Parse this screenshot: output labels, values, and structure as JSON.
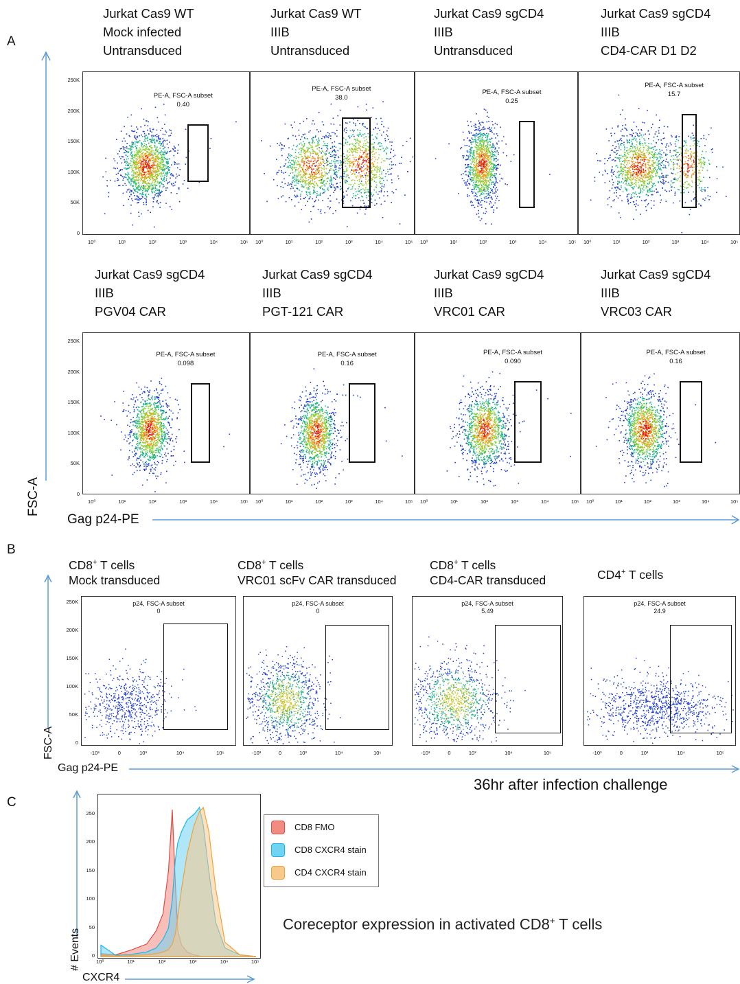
{
  "panels": {
    "a": "A",
    "b": "B",
    "c": "C"
  },
  "panelA": {
    "axis_x_label": "Gag p24-PE",
    "axis_y_label": "FSC-A",
    "y_ticks": [
      "250K",
      "200K",
      "150K",
      "100K",
      "50K",
      "0"
    ],
    "x_ticks": [
      "10⁰",
      "10¹",
      "10²",
      "10³",
      "10⁴",
      "10⁵"
    ],
    "plots": [
      {
        "lines": [
          "Jurkat Cas9 WT",
          "Mock infected",
          "Untransduced"
        ],
        "gate_name": "PE-A, FSC-A subset",
        "value": "0.40"
      },
      {
        "lines": [
          "Jurkat Cas9 WT",
          "IIIB",
          "Untransduced"
        ],
        "gate_name": "PE-A, FSC-A subset",
        "value": "38.0"
      },
      {
        "lines": [
          "Jurkat Cas9 sgCD4",
          "IIIB",
          "Untransduced"
        ],
        "gate_name": "PE-A, FSC-A subset",
        "value": "0.25"
      },
      {
        "lines": [
          "Jurkat Cas9 sgCD4",
          "IIIB",
          "CD4-CAR D1 D2"
        ],
        "gate_name": "PE-A, FSC-A subset",
        "value": "15.7"
      },
      {
        "lines": [
          "Jurkat Cas9 sgCD4",
          "IIIB",
          "PGV04 CAR"
        ],
        "gate_name": "PE-A, FSC-A subset",
        "value": "0.098"
      },
      {
        "lines": [
          "Jurkat Cas9 sgCD4",
          "IIIB",
          "PGT-121 CAR"
        ],
        "gate_name": "PE-A, FSC-A subset",
        "value": "0.16"
      },
      {
        "lines": [
          "Jurkat Cas9 sgCD4",
          "IIIB",
          "VRC01 CAR"
        ],
        "gate_name": "PE-A, FSC-A subset",
        "value": "0.090"
      },
      {
        "lines": [
          "Jurkat Cas9 sgCD4",
          "IIIB",
          "VRC03 CAR"
        ],
        "gate_name": "PE-A, FSC-A subset",
        "value": "0.16"
      }
    ]
  },
  "panelB": {
    "axis_x_label": "Gag p24-PE",
    "axis_y_label": "FSC-A",
    "footnote": "36hr after infection challenge",
    "y_ticks": [
      "250K",
      "200K",
      "150K",
      "100K",
      "50K",
      "0"
    ],
    "x_ticks": [
      "-10³",
      "0",
      "10³",
      "10⁴",
      "10⁵"
    ],
    "plots": [
      {
        "line1_main": "CD8",
        "line1_sup": "+",
        "line1_rest": " T cells",
        "line2": "Mock transduced",
        "gate_name": "p24, FSC-A subset",
        "value": "0"
      },
      {
        "line1_main": "CD8",
        "line1_sup": "+",
        "line1_rest": " T cells",
        "line2": "VRC01 scFv CAR transduced",
        "gate_name": "p24, FSC-A subset",
        "value": "0"
      },
      {
        "line1_main": "CD8",
        "line1_sup": "+",
        "line1_rest": " T cells",
        "line2": "CD4-CAR transduced",
        "gate_name": "p24, FSC-A subset",
        "value": "5.49"
      },
      {
        "line1_main": "CD4",
        "line1_sup": "+",
        "line1_rest": " T cells",
        "line2": "",
        "gate_name": "p24, FSC-A subset",
        "value": "24.9"
      }
    ]
  },
  "panelC": {
    "axis_x_label": "CXCR4",
    "axis_y_label": "# Events",
    "y_ticks": [
      "250",
      "200",
      "150",
      "100",
      "50",
      "0"
    ],
    "x_ticks": [
      "10⁰",
      "10¹",
      "10²",
      "10³",
      "10⁴",
      "10⁵"
    ],
    "legend": [
      {
        "label": "CD8 FMO",
        "color": "#f28b82"
      },
      {
        "label": "CD8 CXCR4 stain",
        "color": "#6fd3f2"
      },
      {
        "label": "CD4 CXCR4 stain",
        "color": "#f7c98b"
      }
    ],
    "caption_pre": "Coreceptor expression in activated CD8",
    "caption_sup": "+",
    "caption_post": " T cells"
  },
  "chart_data": [
    {
      "type": "scatter",
      "title": "",
      "xlabel": "Gag p24-PE",
      "ylabel": "FSC-A",
      "x_scale": "log",
      "xlim": [
        1,
        100000
      ],
      "ylim": [
        0,
        262144
      ],
      "series": [
        {
          "name": "Jurkat Cas9 WT / Mock infected / Untransduced",
          "gate_percent": 0.4
        },
        {
          "name": "Jurkat Cas9 WT / IIIB / Untransduced",
          "gate_percent": 38.0
        },
        {
          "name": "Jurkat Cas9 sgCD4 / IIIB / Untransduced",
          "gate_percent": 0.25
        },
        {
          "name": "Jurkat Cas9 sgCD4 / IIIB / CD4-CAR D1 D2",
          "gate_percent": 15.7
        },
        {
          "name": "Jurkat Cas9 sgCD4 / IIIB / PGV04 CAR",
          "gate_percent": 0.098
        },
        {
          "name": "Jurkat Cas9 sgCD4 / IIIB / PGT-121 CAR",
          "gate_percent": 0.16
        },
        {
          "name": "Jurkat Cas9 sgCD4 / IIIB / VRC01 CAR",
          "gate_percent": 0.09
        },
        {
          "name": "Jurkat Cas9 sgCD4 / IIIB / VRC03 CAR",
          "gate_percent": 0.16
        }
      ]
    },
    {
      "type": "scatter",
      "title": "",
      "xlabel": "Gag p24-PE",
      "ylabel": "FSC-A",
      "ylim": [
        0,
        262144
      ],
      "series": [
        {
          "name": "CD8+ T cells Mock transduced",
          "gate_percent": 0
        },
        {
          "name": "CD8+ T cells VRC01 scFv CAR transduced",
          "gate_percent": 0
        },
        {
          "name": "CD8+ T cells CD4-CAR transduced",
          "gate_percent": 5.49
        },
        {
          "name": "CD4+ T cells",
          "gate_percent": 24.9
        }
      ]
    },
    {
      "type": "area",
      "title": "",
      "xlabel": "CXCR4",
      "ylabel": "# Events",
      "x_scale": "log",
      "xlim": [
        1,
        100000
      ],
      "ylim": [
        0,
        280
      ],
      "x": [
        1,
        3,
        10,
        30,
        60,
        100,
        150,
        200,
        250,
        300,
        400,
        600,
        1000,
        1500,
        2000,
        3000,
        5000,
        10000,
        30000,
        100000
      ],
      "series": [
        {
          "name": "CD8 FMO",
          "values": [
            5,
            3,
            12,
            22,
            45,
            75,
            150,
            258,
            130,
            45,
            20,
            8,
            3,
            1,
            0,
            0,
            0,
            0,
            0,
            0
          ]
        },
        {
          "name": "CD8 CXCR4 stain",
          "values": [
            20,
            2,
            4,
            8,
            15,
            30,
            50,
            100,
            170,
            200,
            220,
            240,
            250,
            262,
            230,
            150,
            60,
            15,
            3,
            0
          ]
        },
        {
          "name": "CD4 CXCR4 stain",
          "values": [
            2,
            1,
            2,
            3,
            5,
            8,
            12,
            22,
            40,
            70,
            120,
            180,
            230,
            255,
            262,
            220,
            120,
            25,
            3,
            0
          ]
        }
      ]
    }
  ]
}
